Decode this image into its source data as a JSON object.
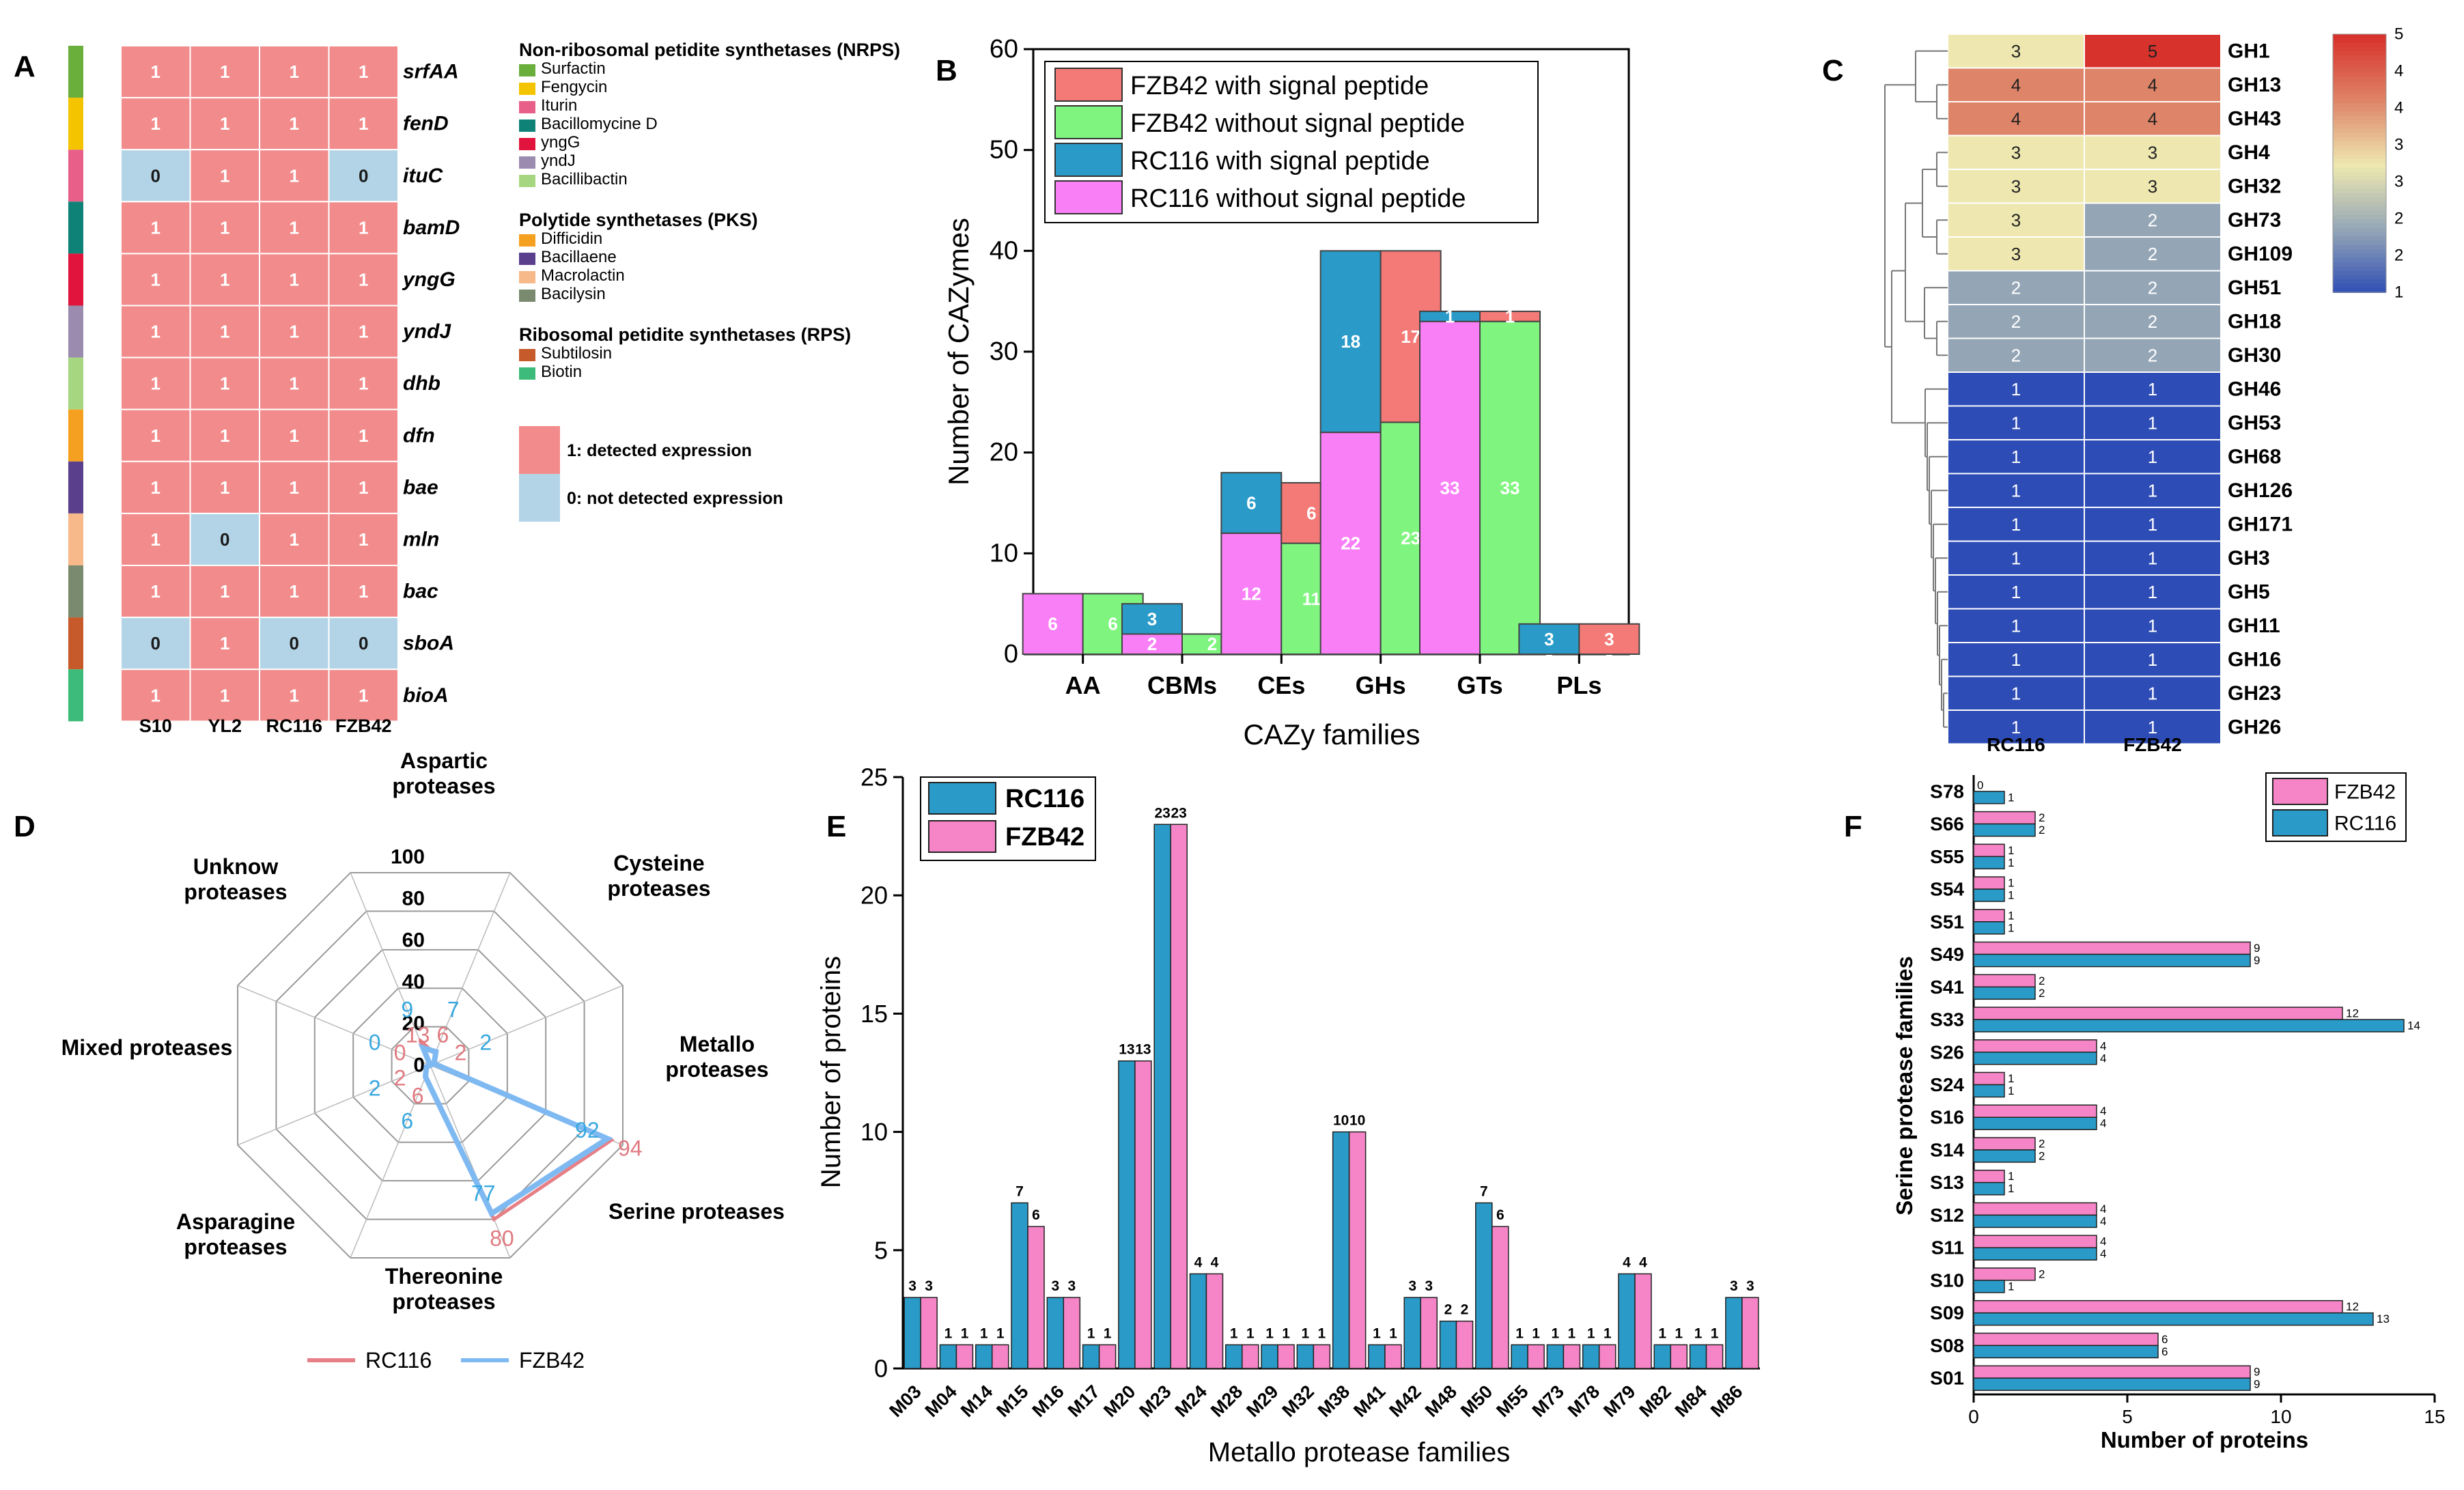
{
  "colors": {
    "hm_one": "#F28B8B",
    "hm_zero": "#B3D4E6",
    "fzb42_sp": "#F37A77",
    "fzb42_nosp": "#7FF57F",
    "rc116_sp": "#2A9BC8",
    "rc116_nosp": "#F97FF7",
    "radar_rc116": "#E77F87",
    "radar_fzb42": "#7FB9F2",
    "bar_rc116": "#2A9BC8",
    "bar_fzb42": "#F585C6"
  },
  "chart_data": [
    {
      "panel": "A",
      "type": "heatmap",
      "columns": [
        "S10",
        "YL2",
        "RC116",
        "FZB42"
      ],
      "rows": [
        "srfAA",
        "fenD",
        "ituC",
        "bamD",
        "yngG",
        "yndJ",
        "dhb",
        "dfn",
        "bae",
        "mln",
        "bac",
        "sboA",
        "bioA"
      ],
      "values": [
        [
          1,
          1,
          1,
          1
        ],
        [
          1,
          1,
          1,
          1
        ],
        [
          0,
          1,
          1,
          0
        ],
        [
          1,
          1,
          1,
          1
        ],
        [
          1,
          1,
          1,
          1
        ],
        [
          1,
          1,
          1,
          1
        ],
        [
          1,
          1,
          1,
          1
        ],
        [
          1,
          1,
          1,
          1
        ],
        [
          1,
          1,
          1,
          1
        ],
        [
          1,
          0,
          1,
          1
        ],
        [
          1,
          1,
          1,
          1
        ],
        [
          0,
          1,
          0,
          0
        ],
        [
          1,
          1,
          1,
          1
        ]
      ],
      "row_colors": [
        "#6AAE3C",
        "#F5C400",
        "#E8608A",
        "#0E8276",
        "#E0143C",
        "#9B8BAE",
        "#A6D67F",
        "#F5A020",
        "#5A3F8C",
        "#F7B88A",
        "#7A8A6E",
        "#C65A2A",
        "#3DBB7A"
      ],
      "legend_groups": [
        {
          "title": "Non-ribosomal petidite synthetases (NRPS)",
          "items": [
            {
              "label": "Surfactin",
              "color": "#6AAE3C"
            },
            {
              "label": "Fengycin",
              "color": "#F5C400"
            },
            {
              "label": "Iturin",
              "color": "#E8608A"
            },
            {
              "label": "Bacillomycine D",
              "color": "#0E8276"
            },
            {
              "label": "yngG",
              "color": "#E0143C"
            },
            {
              "label": "yndJ",
              "color": "#9B8BAE"
            },
            {
              "label": "Bacillibactin",
              "color": "#A6D67F"
            }
          ]
        },
        {
          "title": "Polytide synthetases (PKS)",
          "items": [
            {
              "label": "Difficidin",
              "color": "#F5A020"
            },
            {
              "label": "Bacillaene",
              "color": "#5A3F8C"
            },
            {
              "label": "Macrolactin",
              "color": "#F7B88A"
            },
            {
              "label": "Bacilysin",
              "color": "#7A8A6E"
            }
          ]
        },
        {
          "title": "Ribosomal petidite synthetases (RPS)",
          "items": [
            {
              "label": "Subtilosin",
              "color": "#C65A2A"
            },
            {
              "label": "Biotin",
              "color": "#3DBB7A"
            }
          ]
        }
      ],
      "value_legend": [
        "1: detected expression",
        "0: not detected expression"
      ]
    },
    {
      "panel": "B",
      "type": "bar",
      "categories": [
        "AA",
        "CBMs",
        "CEs",
        "GHs",
        "GTs",
        "PLs"
      ],
      "series": [
        {
          "name": "FZB42 with signal peptide",
          "values": [
            0,
            0,
            6,
            17,
            1,
            3
          ]
        },
        {
          "name": "FZB42 without signal peptide",
          "values": [
            6,
            2,
            11,
            23,
            33,
            0
          ]
        },
        {
          "name": "RC116 with signal peptide",
          "values": [
            0,
            3,
            6,
            18,
            1,
            3
          ]
        },
        {
          "name": "RC116 without signal peptide",
          "values": [
            6,
            2,
            12,
            22,
            33,
            0
          ]
        }
      ],
      "xlabel": "CAZy families",
      "ylabel": "Number of CAZymes",
      "ylim": [
        0,
        60
      ],
      "yticks": [
        0,
        10,
        20,
        30,
        40,
        50,
        60
      ]
    },
    {
      "panel": "C",
      "type": "heatmap",
      "columns": [
        "RC116",
        "FZB42"
      ],
      "rows": [
        "GH1",
        "GH13",
        "GH43",
        "GH4",
        "GH32",
        "GH73",
        "GH109",
        "GH51",
        "GH18",
        "GH30",
        "GH46",
        "GH53",
        "GH68",
        "GH126",
        "GH171",
        "GH3",
        "GH5",
        "GH11",
        "GH16",
        "GH23",
        "GH26"
      ],
      "values": [
        [
          3,
          5
        ],
        [
          4,
          4
        ],
        [
          4,
          4
        ],
        [
          3,
          3
        ],
        [
          3,
          3
        ],
        [
          3,
          2
        ],
        [
          3,
          2
        ],
        [
          2,
          2
        ],
        [
          2,
          2
        ],
        [
          2,
          2
        ],
        [
          1,
          1
        ],
        [
          1,
          1
        ],
        [
          1,
          1
        ],
        [
          1,
          1
        ],
        [
          1,
          1
        ],
        [
          1,
          1
        ],
        [
          1,
          1
        ],
        [
          1,
          1
        ],
        [
          1,
          1
        ],
        [
          1,
          1
        ],
        [
          1,
          1
        ]
      ],
      "colorbar_ticks": [
        "5",
        "4",
        "4",
        "3",
        "3",
        "2",
        "2",
        "1"
      ],
      "scale": [
        1,
        5
      ]
    },
    {
      "panel": "D",
      "type": "radar",
      "axes": [
        "Aspartic proteases",
        "Cysteine proteases",
        "Metallo proteases",
        "Serine proteases",
        "Thereonine proteases",
        "Asparagine proteases",
        "Mixed proteases",
        "Unknow proteases"
      ],
      "rlim": [
        0,
        100
      ],
      "rticks": [
        0,
        20,
        40,
        60,
        80,
        100
      ],
      "series": [
        {
          "name": "RC116",
          "values": [
            6,
            2,
            94,
            80,
            6,
            2,
            0,
            13
          ]
        },
        {
          "name": "FZB42",
          "values": [
            7,
            2,
            92,
            77,
            6,
            2,
            0,
            9
          ]
        }
      ]
    },
    {
      "panel": "E",
      "type": "bar",
      "categories": [
        "M03",
        "M04",
        "M14",
        "M15",
        "M16",
        "M17",
        "M20",
        "M23",
        "M24",
        "M28",
        "M29",
        "M32",
        "M38",
        "M41",
        "M42",
        "M48",
        "M50",
        "M55",
        "M73",
        "M78",
        "M79",
        "M82",
        "M84",
        "M86"
      ],
      "series": [
        {
          "name": "RC116",
          "values": [
            3,
            1,
            1,
            7,
            3,
            1,
            13,
            23,
            4,
            1,
            1,
            1,
            10,
            1,
            3,
            2,
            7,
            1,
            1,
            1,
            4,
            1,
            1,
            3
          ]
        },
        {
          "name": "FZB42",
          "values": [
            3,
            1,
            1,
            6,
            3,
            1,
            13,
            23,
            4,
            1,
            1,
            1,
            10,
            1,
            3,
            2,
            6,
            1,
            1,
            1,
            4,
            1,
            1,
            3
          ]
        }
      ],
      "xlabel": "Metallo protease families",
      "ylabel": "Number of proteins",
      "ylim": [
        0,
        25
      ],
      "yticks": [
        0,
        5,
        10,
        15,
        20,
        25
      ]
    },
    {
      "panel": "F",
      "type": "bar",
      "orientation": "horizontal",
      "categories": [
        "S78",
        "S66",
        "S55",
        "S54",
        "S51",
        "S49",
        "S41",
        "S33",
        "S26",
        "S24",
        "S16",
        "S14",
        "S13",
        "S12",
        "S11",
        "S10",
        "S09",
        "S08",
        "S01"
      ],
      "series": [
        {
          "name": "FZB42",
          "values": [
            0,
            2,
            1,
            1,
            1,
            9,
            2,
            12,
            4,
            1,
            4,
            2,
            1,
            4,
            4,
            2,
            12,
            6,
            9
          ]
        },
        {
          "name": "RC116",
          "values": [
            1,
            2,
            1,
            1,
            1,
            9,
            2,
            14,
            4,
            1,
            4,
            2,
            1,
            4,
            4,
            1,
            13,
            6,
            9
          ]
        }
      ],
      "xlabel": "Number  of proteins",
      "ylabel": "Serine protease families",
      "xlim": [
        0,
        15
      ],
      "xticks": [
        0,
        5,
        10,
        15
      ]
    }
  ]
}
